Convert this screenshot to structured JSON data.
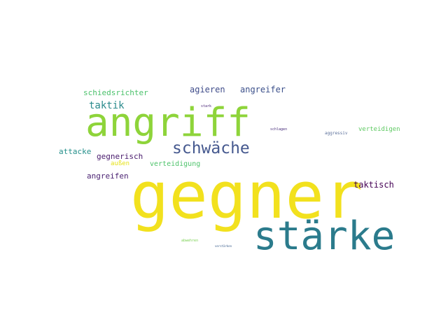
{
  "words": [
    {
      "text": "gegner",
      "color": "#f2e11e"
    },
    {
      "text": "stärke",
      "color": "#2b7b8c"
    },
    {
      "text": "angriff",
      "color": "#8ed43a"
    },
    {
      "text": "schwäche",
      "color": "#46598f"
    },
    {
      "text": "agieren",
      "color": "#3f4c8a"
    },
    {
      "text": "angreifer",
      "color": "#3b4f8a"
    },
    {
      "text": "schiedsrichter",
      "color": "#4cc26c"
    },
    {
      "text": "taktik",
      "color": "#2a8a8c"
    },
    {
      "text": "attacke",
      "color": "#25908b"
    },
    {
      "text": "gegnerisch",
      "color": "#481a6c"
    },
    {
      "text": "außen",
      "color": "#e6e21a"
    },
    {
      "text": "verteidigung",
      "color": "#4ec36b"
    },
    {
      "text": "angreifen",
      "color": "#481f70"
    },
    {
      "text": "taktisch",
      "color": "#440154"
    },
    {
      "text": "verteidigen",
      "color": "#5ec962"
    },
    {
      "text": "aggressiv",
      "color": "#5a6f9a"
    },
    {
      "text": "schlagen",
      "color": "#472c7a"
    },
    {
      "text": "stark",
      "color": "#482475"
    },
    {
      "text": "abwehren",
      "color": "#7ad151"
    },
    {
      "text": "verstärken",
      "color": "#3a5e8c"
    }
  ]
}
